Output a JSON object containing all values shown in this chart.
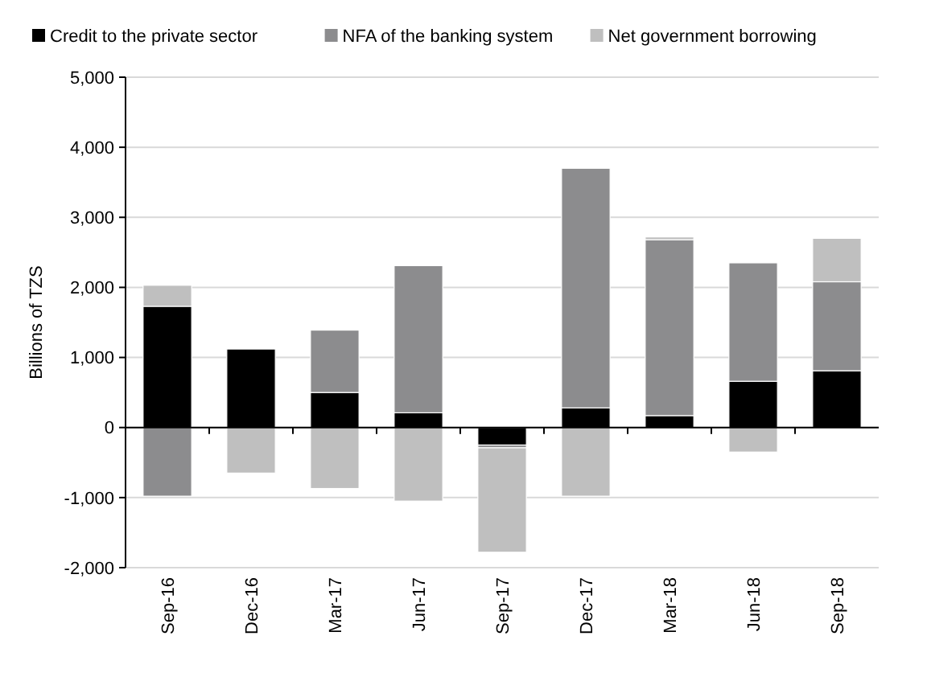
{
  "chart_data": {
    "type": "bar",
    "stacked": true,
    "ylabel": "Billions of TZS",
    "categories": [
      "Sep-16",
      "Dec-16",
      "Mar-17",
      "Jun-17",
      "Sep-17",
      "Dec-17",
      "Mar-18",
      "Jun-18",
      "Sep-18"
    ],
    "series": [
      {
        "name": "Credit to the private sector",
        "color": "#000000",
        "values": [
          1730,
          1120,
          500,
          210,
          -250,
          280,
          170,
          660,
          810
        ]
      },
      {
        "name": "NFA of the banking system",
        "color": "#8c8c8e",
        "values": [
          -980,
          null,
          890,
          2100,
          -40,
          3420,
          2510,
          1690,
          1270
        ]
      },
      {
        "name": "Net government borrowing",
        "color": "#bfbfbf",
        "values": [
          300,
          -650,
          -870,
          -1050,
          -1490,
          -980,
          40,
          -350,
          620
        ]
      }
    ],
    "ylim": [
      -2000,
      5000
    ],
    "yticks": [
      {
        "value": -2000,
        "label": "-2,000"
      },
      {
        "value": -1000,
        "label": "-1,000"
      },
      0,
      {
        "value": 1000,
        "label": "1,000"
      },
      {
        "value": 2000,
        "label": "2,000"
      },
      {
        "value": 3000,
        "label": "3,000"
      },
      {
        "value": 4000,
        "label": "4,000"
      },
      {
        "value": 5000,
        "label": "5,000"
      }
    ],
    "grid": "y",
    "legend": "top"
  }
}
